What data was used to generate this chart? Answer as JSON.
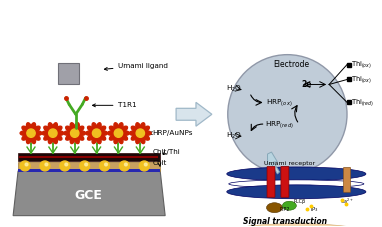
{
  "bg_color": "#ffffff",
  "left_panel": {
    "gce_color": "#909090",
    "chit_color": "#c8a060",
    "chit_thi_dark": "#1a0808",
    "aunp_color": "#f0c020",
    "hrp_center": "#f0c020",
    "hrp_petals": "#cc2200",
    "antibody_color": "#44aa22",
    "ligand_color": "#909090",
    "labels": {
      "umami": "Umami ligand",
      "t1r1": "T1R1",
      "hrp": "HRP/AuNPs",
      "chitthi": "Chit/Thi",
      "chit": "Chit",
      "gce": "GCE"
    }
  },
  "circle_color": "#b8c4d0",
  "right_top": {
    "electrode": "Electrode",
    "thi_ox1": "Thi",
    "thi_ox2": "Thi",
    "thi_red": "Thi"
  },
  "right_bottom": {
    "receptor_color": "#cc1111",
    "membrane_dark": "#1a3a8a",
    "membrane_white": "#ffffff",
    "title": "Signal transduction"
  }
}
